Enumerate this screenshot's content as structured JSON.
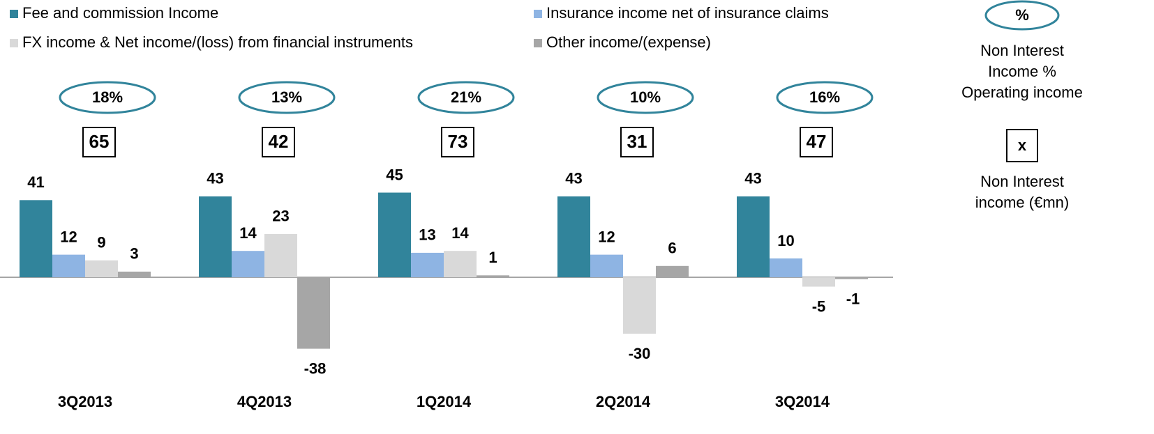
{
  "chart_data": {
    "type": "bar",
    "categories": [
      "3Q2013",
      "4Q2013",
      "1Q2014",
      "2Q2014",
      "3Q2014"
    ],
    "series": [
      {
        "name": "Fee and commission Income",
        "color": "#31849b",
        "values": [
          41,
          43,
          45,
          43,
          43
        ]
      },
      {
        "name": "Insurance income net of insurance claims",
        "color": "#8eb4e3",
        "values": [
          12,
          14,
          13,
          12,
          10
        ]
      },
      {
        "name": "FX income & Net income/(loss) from financial instruments",
        "color": "#d9d9d9",
        "values": [
          9,
          23,
          14,
          -30,
          -5
        ]
      },
      {
        "name": "Other income/(expense)",
        "color": "#a6a6a6",
        "values": [
          3,
          -38,
          1,
          6,
          -1
        ]
      }
    ],
    "ratios": [
      18,
      13,
      21,
      10,
      16
    ],
    "ratio_labels": [
      "18%",
      "13%",
      "21%",
      "10%",
      "16%"
    ],
    "totals": [
      65,
      42,
      73,
      31,
      47
    ],
    "key": {
      "ratio_symbol": "%",
      "ratio_label": [
        "Non Interest",
        "Income %",
        "Operating income"
      ],
      "total_symbol": "x",
      "total_label": [
        "Non Interest",
        "income (€mn)"
      ]
    }
  }
}
